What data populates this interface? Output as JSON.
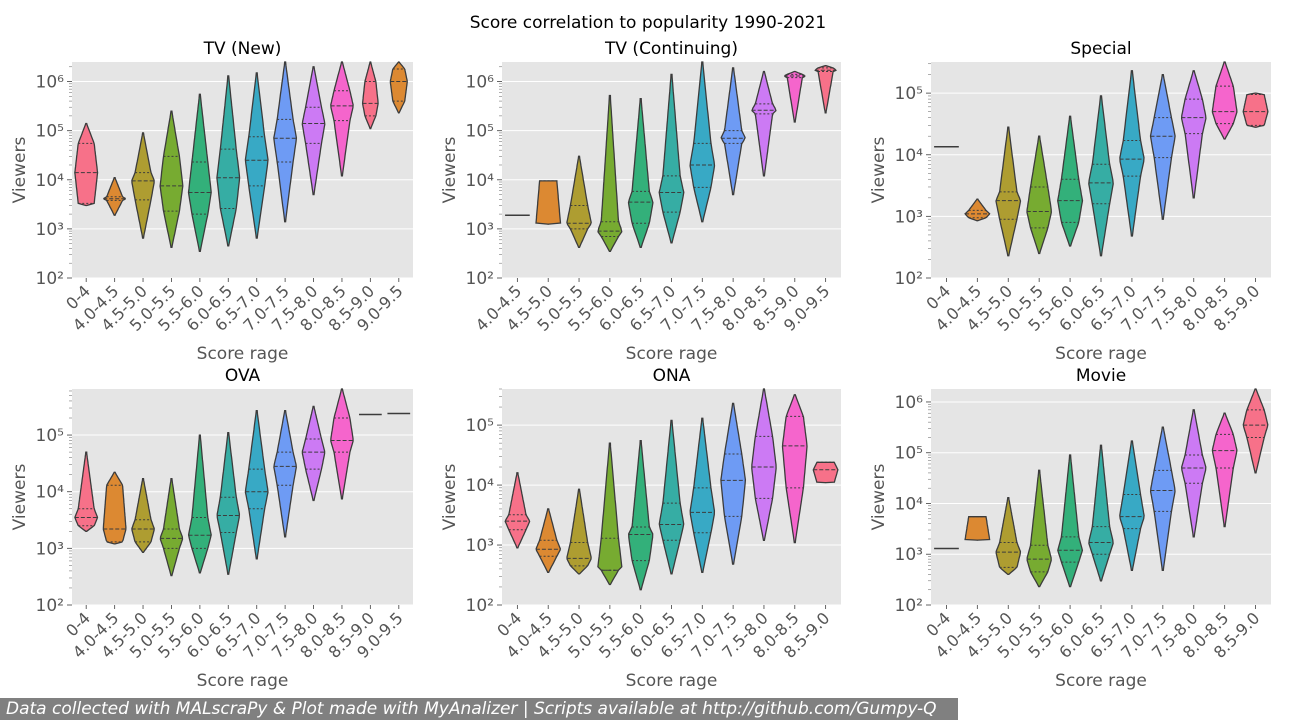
{
  "figure": {
    "suptitle": "Score correlation to popularity 1990-2021",
    "footer": "Data collected with MALscraPy & Plot made with MyAnalizer | Scripts available at http://github.com/Gumpy-Q"
  },
  "palette": [
    "#f77189",
    "#dc8932",
    "#ae9d31",
    "#77ab31",
    "#33b07a",
    "#36ada4",
    "#38a9c5",
    "#6e9bf4",
    "#cc7af4",
    "#f565cc"
  ],
  "chart_data": [
    {
      "type": "violin",
      "title": "TV (New)",
      "xlabel": "Score rage",
      "ylabel": "Viewers",
      "yscale": "log",
      "ylim": [
        100,
        2500000
      ],
      "yticks": [
        {
          "v": 100,
          "label": "10²"
        },
        {
          "v": 1000,
          "label": "10³"
        },
        {
          "v": 10000,
          "label": "10⁴"
        },
        {
          "v": 100000,
          "label": "10⁵"
        },
        {
          "v": 1000000,
          "label": "10⁶"
        }
      ],
      "categories": [
        "0-4",
        "4.0-4.5",
        "4.5-5.0",
        "5.0-5.5",
        "5.5-6.0",
        "6.0-6.5",
        "6.5-7.0",
        "7.0-7.5",
        "7.5-8.0",
        "8.0-8.5",
        "8.5-9.0",
        "9.0-9.5"
      ],
      "values": [
        {
          "min": 3000,
          "q1": 3300,
          "median": 14000,
          "q3": 55000,
          "max": 140000,
          "width": 0.8
        },
        {
          "min": 1900,
          "q1": 3800,
          "median": 4100,
          "q3": 4500,
          "max": 11000,
          "width": 0.8
        },
        {
          "min": 650,
          "q1": 3900,
          "median": 9500,
          "q3": 14000,
          "max": 90000,
          "width": 0.8
        },
        {
          "min": 420,
          "q1": 2300,
          "median": 7500,
          "q3": 30000,
          "max": 250000,
          "width": 0.8
        },
        {
          "min": 350,
          "q1": 2000,
          "median": 5500,
          "q3": 23000,
          "max": 550000,
          "width": 0.8
        },
        {
          "min": 450,
          "q1": 2600,
          "median": 11000,
          "q3": 42000,
          "max": 1300000,
          "width": 0.8
        },
        {
          "min": 650,
          "q1": 7500,
          "median": 25000,
          "q3": 75000,
          "max": 1500000,
          "width": 0.8
        },
        {
          "min": 1400,
          "q1": 23000,
          "median": 70000,
          "q3": 170000,
          "max": 2500000,
          "width": 0.8
        },
        {
          "min": 5000,
          "q1": 55000,
          "median": 140000,
          "q3": 300000,
          "max": 2000000,
          "width": 0.8
        },
        {
          "min": 12000,
          "q1": 160000,
          "median": 320000,
          "q3": 650000,
          "max": 2500000,
          "width": 0.8
        },
        {
          "min": 110000,
          "q1": 200000,
          "median": 360000,
          "q3": 1000000,
          "max": 2500000,
          "width": 0.55
        },
        {
          "min": 230000,
          "q1": 400000,
          "median": 1000000,
          "q3": 1800000,
          "max": 2500000,
          "width": 0.6
        }
      ]
    },
    {
      "type": "violin",
      "title": "TV (Continuing)",
      "xlabel": "Score rage",
      "ylabel": "Viewers",
      "yscale": "log",
      "ylim": [
        100,
        2500000
      ],
      "yticks": [
        {
          "v": 100,
          "label": "10²"
        },
        {
          "v": 1000,
          "label": "10³"
        },
        {
          "v": 10000,
          "label": "10⁴"
        },
        {
          "v": 100000,
          "label": "10⁵"
        },
        {
          "v": 1000000,
          "label": "10⁶"
        }
      ],
      "categories": [
        "4.0-4.5",
        "4.5-5.0",
        "5.0-5.5",
        "5.5-6.0",
        "6.0-6.5",
        "6.5-7.0",
        "7.0-7.5",
        "7.5-8.0",
        "8.0-8.5",
        "8.5-9.0",
        "9.0-9.5"
      ],
      "values": [
        {
          "min": 1900,
          "q1": 1900,
          "median": 1900,
          "q3": 1900,
          "max": 1900,
          "width": 0.8
        },
        {
          "min": 1250,
          "q1": 1250,
          "median": 1250,
          "q3": 9500,
          "max": 9500,
          "width": 0.8
        },
        {
          "min": 420,
          "q1": 1000,
          "median": 1300,
          "q3": 3000,
          "max": 30000,
          "width": 0.8
        },
        {
          "min": 350,
          "q1": 700,
          "median": 900,
          "q3": 1400,
          "max": 520000,
          "width": 0.8
        },
        {
          "min": 420,
          "q1": 1300,
          "median": 3500,
          "q3": 5800,
          "max": 450000,
          "width": 0.8
        },
        {
          "min": 520,
          "q1": 2200,
          "median": 5500,
          "q3": 12000,
          "max": 1400000,
          "width": 0.8
        },
        {
          "min": 1400,
          "q1": 7000,
          "median": 20000,
          "q3": 55000,
          "max": 2500000,
          "width": 0.8
        },
        {
          "min": 5000,
          "q1": 55000,
          "median": 70000,
          "q3": 100000,
          "max": 1900000,
          "width": 0.8
        },
        {
          "min": 12000,
          "q1": 220000,
          "median": 260000,
          "q3": 350000,
          "max": 1600000,
          "width": 0.8
        },
        {
          "min": 150000,
          "q1": 1200000,
          "median": 1300000,
          "q3": 1400000,
          "max": 1600000,
          "width": 0.7
        },
        {
          "min": 230000,
          "q1": 1600000,
          "median": 1700000,
          "q3": 1900000,
          "max": 2100000,
          "width": 0.7
        }
      ]
    },
    {
      "type": "violin",
      "title": "Special",
      "xlabel": "Score rage",
      "ylabel": "Viewers",
      "yscale": "log",
      "ylim": [
        100,
        320000
      ],
      "yticks": [
        {
          "v": 100,
          "label": "10²"
        },
        {
          "v": 1000,
          "label": "10³"
        },
        {
          "v": 10000,
          "label": "10⁴"
        },
        {
          "v": 100000,
          "label": "10⁵"
        }
      ],
      "categories": [
        "0-4",
        "4.0-4.5",
        "4.5-5.0",
        "5.0-5.5",
        "5.5-6.0",
        "6.0-6.5",
        "6.5-7.0",
        "7.0-7.5",
        "7.5-8.0",
        "8.0-8.5",
        "8.5-9.0"
      ],
      "values": [
        {
          "min": 13500,
          "q1": 13500,
          "median": 13500,
          "q3": 13500,
          "max": 13500,
          "width": 0.8
        },
        {
          "min": 850,
          "q1": 950,
          "median": 1100,
          "q3": 1250,
          "max": 1900,
          "width": 0.8
        },
        {
          "min": 230,
          "q1": 900,
          "median": 1800,
          "q3": 2500,
          "max": 28000,
          "width": 0.8
        },
        {
          "min": 250,
          "q1": 650,
          "median": 1200,
          "q3": 3000,
          "max": 20000,
          "width": 0.8
        },
        {
          "min": 330,
          "q1": 800,
          "median": 1800,
          "q3": 4000,
          "max": 42000,
          "width": 0.8
        },
        {
          "min": 230,
          "q1": 1600,
          "median": 3500,
          "q3": 7000,
          "max": 90000,
          "width": 0.8
        },
        {
          "min": 480,
          "q1": 4500,
          "median": 8500,
          "q3": 17000,
          "max": 230000,
          "width": 0.8
        },
        {
          "min": 900,
          "q1": 9000,
          "median": 20000,
          "q3": 40000,
          "max": 200000,
          "width": 0.8
        },
        {
          "min": 2000,
          "q1": 22000,
          "median": 40000,
          "q3": 80000,
          "max": 230000,
          "width": 0.8
        },
        {
          "min": 18000,
          "q1": 32000,
          "median": 50000,
          "q3": 130000,
          "max": 320000,
          "width": 0.8
        },
        {
          "min": 28000,
          "q1": 30000,
          "median": 50000,
          "q3": 95000,
          "max": 100000,
          "width": 0.8
        }
      ]
    },
    {
      "type": "violin",
      "title": "OVA",
      "xlabel": "Score rage",
      "ylabel": "Viewers",
      "yscale": "log",
      "ylim": [
        100,
        650000
      ],
      "yticks": [
        {
          "v": 100,
          "label": "10²"
        },
        {
          "v": 1000,
          "label": "10³"
        },
        {
          "v": 10000,
          "label": "10⁴"
        },
        {
          "v": 100000,
          "label": "10⁵"
        }
      ],
      "categories": [
        "0-4",
        "4.0-4.5",
        "4.5-5.0",
        "5.0-5.5",
        "5.5-6.0",
        "6.0-6.5",
        "6.5-7.0",
        "7.0-7.5",
        "7.5-8.0",
        "8.0-8.5",
        "8.5-9.0",
        "9.0-9.5"
      ],
      "values": [
        {
          "min": 2000,
          "q1": 2500,
          "median": 3500,
          "q3": 5000,
          "max": 50000,
          "width": 0.8
        },
        {
          "min": 1200,
          "q1": 1300,
          "median": 2200,
          "q3": 13000,
          "max": 22000,
          "width": 0.8
        },
        {
          "min": 850,
          "q1": 1300,
          "median": 2200,
          "q3": 3200,
          "max": 17000,
          "width": 0.8
        },
        {
          "min": 330,
          "q1": 1000,
          "median": 1500,
          "q3": 2200,
          "max": 17000,
          "width": 0.8
        },
        {
          "min": 370,
          "q1": 1000,
          "median": 1700,
          "q3": 3500,
          "max": 100000,
          "width": 0.8
        },
        {
          "min": 350,
          "q1": 1900,
          "median": 3800,
          "q3": 8000,
          "max": 110000,
          "width": 0.8
        },
        {
          "min": 650,
          "q1": 5000,
          "median": 10000,
          "q3": 25000,
          "max": 270000,
          "width": 0.8
        },
        {
          "min": 1600,
          "q1": 13000,
          "median": 28000,
          "q3": 50000,
          "max": 270000,
          "width": 0.8
        },
        {
          "min": 7000,
          "q1": 25000,
          "median": 50000,
          "q3": 85000,
          "max": 320000,
          "width": 0.8
        },
        {
          "min": 7500,
          "q1": 50000,
          "median": 80000,
          "q3": 200000,
          "max": 650000,
          "width": 0.8
        },
        {
          "min": 230000,
          "q1": 230000,
          "median": 230000,
          "q3": 230000,
          "max": 230000,
          "width": 0.8
        },
        {
          "min": 240000,
          "q1": 240000,
          "median": 240000,
          "q3": 240000,
          "max": 240000,
          "width": 0.8
        }
      ]
    },
    {
      "type": "violin",
      "title": "ONA",
      "xlabel": "Score rage",
      "ylabel": "Viewers",
      "yscale": "log",
      "ylim": [
        100,
        400000
      ],
      "yticks": [
        {
          "v": 100,
          "label": "10²"
        },
        {
          "v": 1000,
          "label": "10³"
        },
        {
          "v": 10000,
          "label": "10⁴"
        },
        {
          "v": 100000,
          "label": "10⁵"
        }
      ],
      "categories": [
        "0-4",
        "4.0-4.5",
        "4.5-5.0",
        "5.0-5.5",
        "5.5-6.0",
        "6.0-6.5",
        "6.5-7.0",
        "7.0-7.5",
        "7.5-8.0",
        "8.0-8.5",
        "8.5-9.0"
      ],
      "values": [
        {
          "min": 900,
          "q1": 1800,
          "median": 2500,
          "q3": 3200,
          "max": 16000,
          "width": 0.8
        },
        {
          "min": 350,
          "q1": 650,
          "median": 850,
          "q3": 1200,
          "max": 4000,
          "width": 0.8
        },
        {
          "min": 330,
          "q1": 450,
          "median": 600,
          "q3": 1100,
          "max": 8500,
          "width": 0.8
        },
        {
          "min": 220,
          "q1": 380,
          "median": 380,
          "q3": 1300,
          "max": 50000,
          "width": 0.8
        },
        {
          "min": 180,
          "q1": 550,
          "median": 1500,
          "q3": 2000,
          "max": 55000,
          "width": 0.8
        },
        {
          "min": 330,
          "q1": 1200,
          "median": 2200,
          "q3": 5000,
          "max": 120000,
          "width": 0.8
        },
        {
          "min": 350,
          "q1": 1600,
          "median": 3500,
          "q3": 9000,
          "max": 130000,
          "width": 0.8
        },
        {
          "min": 480,
          "q1": 3000,
          "median": 12000,
          "q3": 33000,
          "max": 230000,
          "width": 0.8
        },
        {
          "min": 1200,
          "q1": 6000,
          "median": 20000,
          "q3": 65000,
          "max": 400000,
          "width": 0.8
        },
        {
          "min": 1100,
          "q1": 9000,
          "median": 45000,
          "q3": 140000,
          "max": 320000,
          "width": 0.8
        },
        {
          "min": 11000,
          "q1": 11000,
          "median": 18000,
          "q3": 24000,
          "max": 24000,
          "width": 0.8
        }
      ]
    },
    {
      "type": "violin",
      "title": "Movie",
      "xlabel": "Score rage",
      "ylabel": "Viewers",
      "yscale": "log",
      "ylim": [
        100,
        1800000
      ],
      "yticks": [
        {
          "v": 100,
          "label": "10²"
        },
        {
          "v": 1000,
          "label": "10³"
        },
        {
          "v": 10000,
          "label": "10⁴"
        },
        {
          "v": 100000,
          "label": "10⁵"
        },
        {
          "v": 1000000,
          "label": "10⁶"
        }
      ],
      "categories": [
        "0-4",
        "4.0-4.5",
        "4.5-5.0",
        "5.0-5.5",
        "5.5-6.0",
        "6.0-6.5",
        "6.5-7.0",
        "7.0-7.5",
        "7.5-8.0",
        "8.0-8.5",
        "8.5-9.0"
      ],
      "values": [
        {
          "min": 1300,
          "q1": 1300,
          "median": 1300,
          "q3": 1300,
          "max": 1300,
          "width": 0.8
        },
        {
          "min": 1900,
          "q1": 1900,
          "median": 1900,
          "q3": 5500,
          "max": 5500,
          "width": 0.8
        },
        {
          "min": 400,
          "q1": 550,
          "median": 1100,
          "q3": 1700,
          "max": 13000,
          "width": 0.8
        },
        {
          "min": 230,
          "q1": 450,
          "median": 800,
          "q3": 1500,
          "max": 45000,
          "width": 0.8
        },
        {
          "min": 230,
          "q1": 700,
          "median": 1200,
          "q3": 2200,
          "max": 90000,
          "width": 0.8
        },
        {
          "min": 300,
          "q1": 1000,
          "median": 1700,
          "q3": 3500,
          "max": 140000,
          "width": 0.8
        },
        {
          "min": 480,
          "q1": 3200,
          "median": 5500,
          "q3": 15000,
          "max": 170000,
          "width": 0.8
        },
        {
          "min": 480,
          "q1": 7000,
          "median": 18000,
          "q3": 45000,
          "max": 320000,
          "width": 0.8
        },
        {
          "min": 2200,
          "q1": 25000,
          "median": 50000,
          "q3": 90000,
          "max": 700000,
          "width": 0.8
        },
        {
          "min": 3500,
          "q1": 50000,
          "median": 110000,
          "q3": 230000,
          "max": 600000,
          "width": 0.8
        },
        {
          "min": 40000,
          "q1": 200000,
          "median": 350000,
          "q3": 700000,
          "max": 1800000,
          "width": 0.8
        }
      ]
    }
  ]
}
